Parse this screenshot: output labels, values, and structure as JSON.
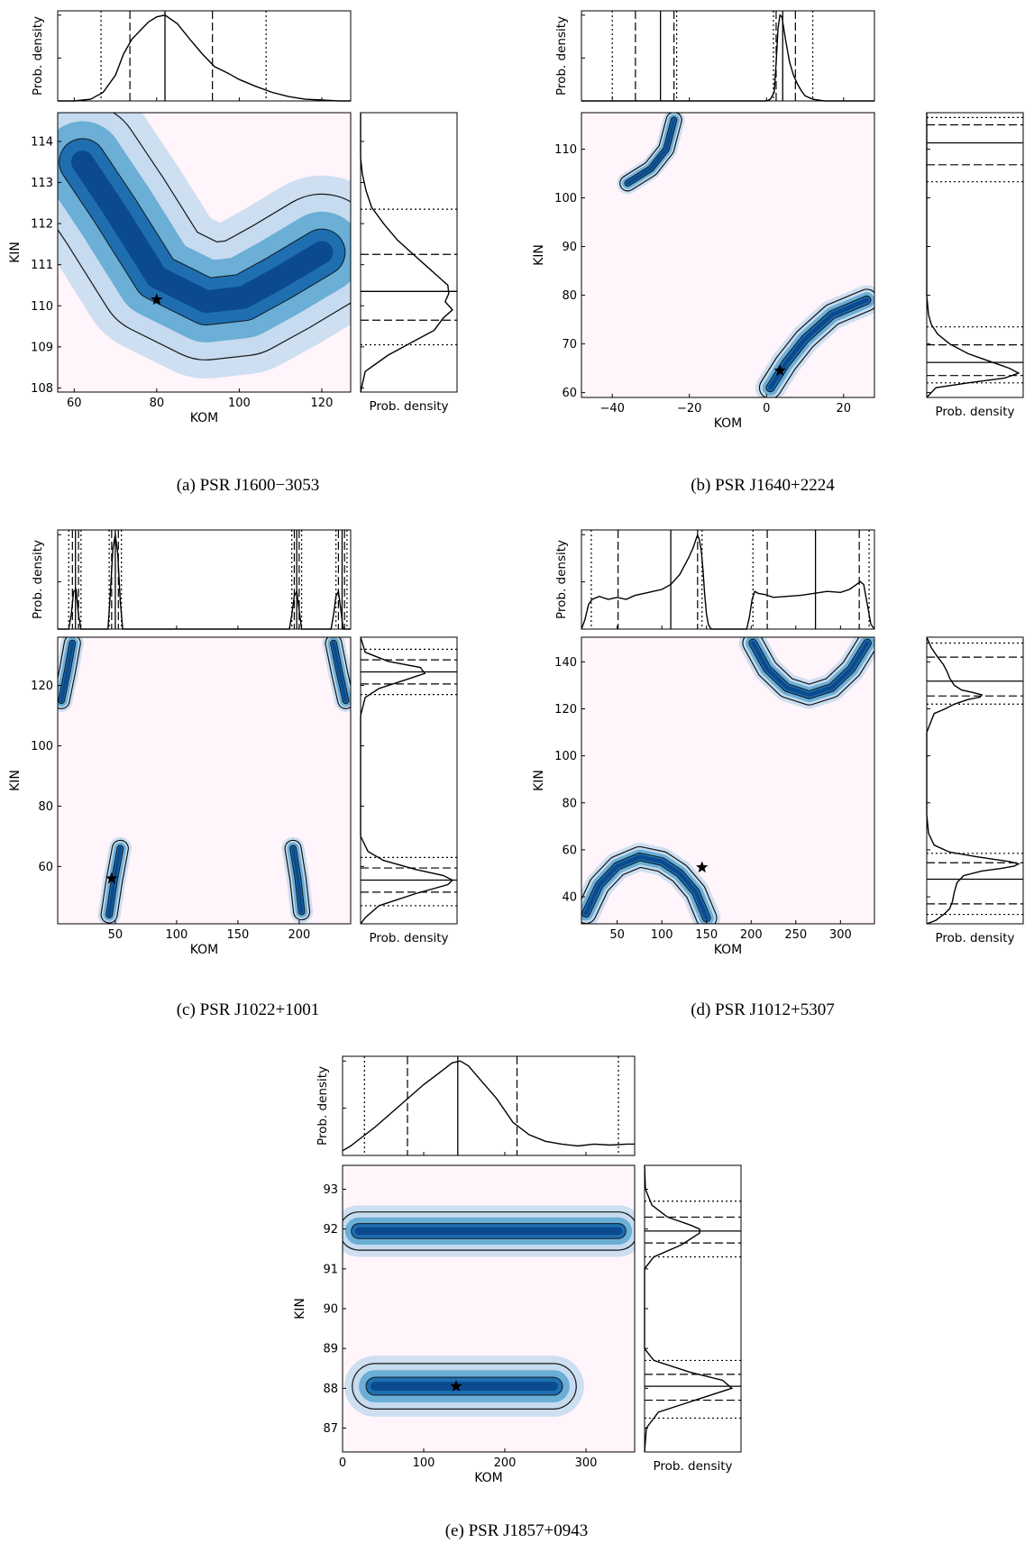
{
  "figure": {
    "captions": [
      "(a) PSR J1600−3053",
      "(b) PSR J1640+2224",
      "(c) PSR J1022+1001",
      "(d) PSR J1012+5307",
      "(e) PSR J1857+0943"
    ]
  },
  "chart_data": [
    {
      "type": "heatmap",
      "caption": "(a) PSR J1600−3053",
      "xlabel": "KOM",
      "ylabel": "KIN",
      "marg_x_label": "Prob. density",
      "marg_y_label": "Prob. density",
      "xlim": [
        56,
        127
      ],
      "ylim": [
        107.9,
        114.7
      ],
      "xticks": [
        60,
        80,
        100,
        120
      ],
      "yticks": [
        108,
        109,
        110,
        111,
        112,
        113,
        114
      ],
      "star": [
        80,
        110.15
      ],
      "blobs": [
        {
          "points": [
            [
              62,
              113.5
            ],
            [
              70,
              112.3
            ],
            [
              80,
              110.7
            ],
            [
              92,
              110.1
            ],
            [
              101,
              110.2
            ],
            [
              110,
              110.7
            ],
            [
              120,
              111.3
            ]
          ],
          "width": 1.1
        }
      ],
      "top_marginal": {
        "x": [
          56,
          60,
          64,
          67,
          70,
          72,
          74,
          76,
          78,
          80,
          82,
          85,
          88,
          91,
          94,
          97,
          100,
          104,
          108,
          112,
          116,
          120,
          124,
          127
        ],
        "y": [
          0,
          0,
          0.02,
          0.1,
          0.3,
          0.55,
          0.72,
          0.82,
          0.92,
          0.98,
          1,
          0.9,
          0.72,
          0.55,
          0.4,
          0.33,
          0.25,
          0.17,
          0.1,
          0.05,
          0.02,
          0.01,
          0,
          0
        ],
        "ymax": 1.05,
        "lines": {
          "solid": [
            82
          ],
          "dashed": [
            73.5,
            93.5
          ],
          "dotted": [
            66.5,
            106.5
          ]
        }
      },
      "right_marginal": {
        "y": [
          107.9,
          108.4,
          108.8,
          109.1,
          109.4,
          109.7,
          109.9,
          110.1,
          110.3,
          110.5,
          110.7,
          111,
          111.3,
          111.6,
          112,
          112.4,
          112.8,
          113.2,
          113.6,
          114.7
        ],
        "x": [
          0,
          0.05,
          0.3,
          0.55,
          0.8,
          0.9,
          1,
          0.92,
          0.96,
          0.95,
          0.85,
          0.7,
          0.55,
          0.4,
          0.25,
          0.12,
          0.06,
          0.02,
          0,
          0
        ],
        "xmax": 1.05,
        "lines": {
          "solid": [
            110.35
          ],
          "dashed": [
            109.65,
            111.25
          ],
          "dotted": [
            109.05,
            112.35
          ]
        }
      }
    },
    {
      "type": "heatmap",
      "caption": "(b) PSR J1640+2224",
      "xlabel": "KOM",
      "ylabel": "KIN",
      "marg_x_label": "Prob. density",
      "marg_y_label": "Prob. density",
      "xlim": [
        -48,
        28
      ],
      "ylim": [
        59,
        117.5
      ],
      "xticks": [
        -40,
        -20,
        0,
        20
      ],
      "yticks": [
        60,
        70,
        80,
        90,
        100,
        110
      ],
      "star": [
        3.5,
        64.5
      ],
      "blobs": [
        {
          "points": [
            [
              1,
              61
            ],
            [
              5,
              66
            ],
            [
              10,
              71
            ],
            [
              17,
              76
            ],
            [
              26,
              79
            ]
          ],
          "width": 1.8
        },
        {
          "points": [
            [
              -36,
              103
            ],
            [
              -30,
              106
            ],
            [
              -26,
              110
            ],
            [
              -24,
              116
            ]
          ],
          "width": 1.3
        }
      ],
      "top_marginal": {
        "x": [
          -48,
          -10,
          0,
          1,
          2,
          2.5,
          3,
          3.5,
          4,
          5,
          6,
          7,
          8,
          9,
          10,
          12,
          15,
          28
        ],
        "y": [
          0,
          0,
          0,
          0.02,
          0.1,
          0.45,
          0.85,
          1,
          0.98,
          0.7,
          0.45,
          0.3,
          0.2,
          0.12,
          0.06,
          0.02,
          0,
          0
        ],
        "ymax": 1.05,
        "lines": {
          "solid": [
            -27.5,
            4.2
          ],
          "dashed": [
            -34,
            -24,
            2.5,
            7.5
          ],
          "dotted": [
            -40,
            -23.3,
            1.8,
            12
          ]
        }
      },
      "right_marginal": {
        "y": [
          59,
          61,
          62,
          63,
          64,
          65,
          66,
          67,
          68,
          70,
          72,
          74,
          76,
          80,
          117.5
        ],
        "x": [
          0,
          0.1,
          0.45,
          0.85,
          1,
          0.9,
          0.75,
          0.6,
          0.45,
          0.25,
          0.12,
          0.05,
          0.02,
          0,
          0
        ],
        "xmax": 1.05,
        "lines": {
          "solid": [
            66.2,
            111.3
          ],
          "dashed": [
            63.5,
            69.8,
            106.8,
            115
          ],
          "dotted": [
            62,
            73.5,
            103.3,
            116.5
          ]
        }
      }
    },
    {
      "type": "heatmap",
      "caption": "(c) PSR J1022+1001",
      "xlabel": "KOM",
      "ylabel": "KIN",
      "marg_x_label": "Prob. density",
      "marg_y_label": "Prob. density",
      "xlim": [
        3,
        242
      ],
      "ylim": [
        41,
        136
      ],
      "xticks": [
        50,
        100,
        150,
        200
      ],
      "yticks": [
        60,
        80,
        100,
        120
      ],
      "star": [
        47,
        56
      ],
      "blobs": [
        {
          "points": [
            [
              45,
              44
            ],
            [
              49,
              55
            ],
            [
              54,
              66
            ]
          ],
          "width": 2.2
        },
        {
          "points": [
            [
              195,
              66
            ],
            [
              199,
              56
            ],
            [
              202,
              45
            ]
          ],
          "width": 2.2
        },
        {
          "points": [
            [
              6,
              115
            ],
            [
              11,
              125
            ],
            [
              15,
              134
            ]
          ],
          "width": 2.2
        },
        {
          "points": [
            [
              228,
              134
            ],
            [
              233,
              124
            ],
            [
              238,
              115
            ]
          ],
          "width": 2.2
        }
      ],
      "top_marginal": {
        "x": [
          3,
          12,
          14,
          16,
          18,
          20,
          22,
          44,
          46,
          48,
          50,
          52,
          54,
          56,
          192,
          194,
          196,
          198,
          200,
          202,
          226,
          228,
          230,
          232,
          234,
          236,
          242
        ],
        "y": [
          0,
          0,
          0.15,
          0.4,
          0.42,
          0.15,
          0,
          0,
          0.4,
          0.85,
          1,
          0.8,
          0.3,
          0,
          0,
          0.15,
          0.35,
          0.4,
          0.2,
          0,
          0,
          0.15,
          0.35,
          0.4,
          0.2,
          0,
          0
        ],
        "ymax": 1.05,
        "lines": {
          "solid": [
            17.5,
            50,
            198,
            235
          ],
          "dashed": [
            15,
            20,
            47,
            52.5,
            196,
            200,
            232,
            237
          ],
          "dotted": [
            12,
            22,
            45,
            55,
            194,
            202,
            230,
            239
          ]
        }
      },
      "right_marginal": {
        "y": [
          41,
          43,
          47,
          51,
          54,
          55.5,
          57,
          59,
          62,
          65,
          70,
          110,
          116,
          119,
          122,
          124,
          126,
          128,
          131,
          136
        ],
        "x": [
          0,
          0.05,
          0.2,
          0.6,
          0.95,
          1,
          0.9,
          0.6,
          0.25,
          0.08,
          0,
          0,
          0.05,
          0.2,
          0.5,
          0.7,
          0.65,
          0.3,
          0.05,
          0
        ],
        "xmax": 1.05,
        "lines": {
          "solid": [
            55.5,
            124.5
          ],
          "dashed": [
            51.5,
            59.5,
            120.5,
            128.5
          ],
          "dotted": [
            47,
            63,
            117,
            132
          ]
        }
      }
    },
    {
      "type": "heatmap",
      "caption": "(d) PSR J1012+5307",
      "xlabel": "KOM",
      "ylabel": "KIN",
      "marg_x_label": "Prob. density",
      "marg_y_label": "Prob. density",
      "xlim": [
        10,
        338
      ],
      "ylim": [
        28.5,
        150.5
      ],
      "xticks": [
        50,
        100,
        150,
        200,
        250,
        300
      ],
      "yticks": [
        40,
        60,
        80,
        100,
        120,
        140
      ],
      "star": [
        145,
        52.5
      ],
      "blobs": [
        {
          "points": [
            [
              15,
              33
            ],
            [
              30,
              45
            ],
            [
              50,
              53
            ],
            [
              75,
              57
            ],
            [
              100,
              55
            ],
            [
              120,
              50
            ],
            [
              138,
              42
            ],
            [
              150,
              31
            ]
          ],
          "width": 3.5
        },
        {
          "points": [
            [
              202,
              148
            ],
            [
              218,
              137
            ],
            [
              240,
              129
            ],
            [
              265,
              126
            ],
            [
              290,
              129
            ],
            [
              312,
              137
            ],
            [
              330,
              148
            ]
          ],
          "width": 3.5
        }
      ],
      "top_marginal": {
        "x": [
          10,
          14,
          18,
          22,
          30,
          40,
          50,
          60,
          70,
          80,
          90,
          100,
          110,
          120,
          130,
          135,
          138,
          140,
          142,
          144,
          146,
          148,
          150,
          152,
          155,
          195,
          198,
          201,
          204,
          208,
          215,
          225,
          240,
          255,
          270,
          285,
          300,
          310,
          318,
          322,
          326,
          330,
          334,
          338
        ],
        "y": [
          0,
          0.1,
          0.25,
          0.3,
          0.33,
          0.3,
          0.32,
          0.3,
          0.34,
          0.36,
          0.38,
          0.4,
          0.45,
          0.55,
          0.72,
          0.82,
          0.9,
          0.95,
          0.9,
          0.8,
          0.6,
          0.35,
          0.15,
          0.05,
          0,
          0,
          0.12,
          0.3,
          0.38,
          0.36,
          0.35,
          0.32,
          0.33,
          0.34,
          0.36,
          0.38,
          0.37,
          0.4,
          0.45,
          0.48,
          0.45,
          0.25,
          0.05,
          0
        ],
        "ymax": 1.0,
        "lines": {
          "solid": [
            110,
            272
          ],
          "dashed": [
            51,
            140,
            218,
            321
          ],
          "dotted": [
            21,
            145,
            202,
            332
          ]
        }
      },
      "right_marginal": {
        "y": [
          28.5,
          30,
          33,
          35,
          38,
          42,
          46,
          49,
          51,
          52,
          53,
          54,
          55,
          57,
          59,
          62,
          67,
          75,
          110,
          118,
          120,
          122,
          124,
          125,
          126,
          127,
          128,
          130,
          133,
          136,
          139,
          142,
          146,
          150.5
        ],
        "x": [
          0,
          0.1,
          0.2,
          0.25,
          0.28,
          0.3,
          0.33,
          0.4,
          0.6,
          0.8,
          0.95,
          1,
          0.9,
          0.55,
          0.25,
          0.08,
          0.02,
          0,
          0,
          0.08,
          0.2,
          0.3,
          0.45,
          0.58,
          0.6,
          0.5,
          0.38,
          0.3,
          0.25,
          0.22,
          0.18,
          0.12,
          0.05,
          0
        ],
        "xmax": 1.05,
        "lines": {
          "solid": [
            47.5,
            131.8
          ],
          "dashed": [
            37,
            54.5,
            125.5,
            142
          ],
          "dotted": [
            32.5,
            58.5,
            122,
            148
          ]
        }
      }
    },
    {
      "type": "heatmap",
      "caption": "(e) PSR J1857+0943",
      "xlabel": "KOM",
      "ylabel": "KIN",
      "marg_x_label": "Prob. density",
      "marg_y_label": "Prob. density",
      "xlim": [
        0,
        360
      ],
      "ylim": [
        86.4,
        93.6
      ],
      "xticks": [
        0,
        100,
        200,
        300
      ],
      "yticks": [
        87,
        88,
        89,
        90,
        91,
        92,
        93
      ],
      "star": [
        140,
        88.05
      ],
      "blobs": [
        {
          "points": [
            [
              40,
              88.05
            ],
            [
              100,
              88.05
            ],
            [
              140,
              88.05
            ],
            [
              200,
              88.05
            ],
            [
              260,
              88.05
            ]
          ],
          "width": 0.45
        },
        {
          "points": [
            [
              20,
              91.95
            ],
            [
              100,
              91.95
            ],
            [
              180,
              91.95
            ],
            [
              260,
              91.95
            ],
            [
              340,
              91.95
            ]
          ],
          "width": 0.38
        }
      ],
      "top_marginal": {
        "x": [
          0,
          10,
          25,
          40,
          60,
          80,
          100,
          120,
          135,
          145,
          155,
          170,
          190,
          210,
          230,
          250,
          270,
          290,
          310,
          330,
          350,
          360
        ],
        "y": [
          0.05,
          0.1,
          0.2,
          0.3,
          0.45,
          0.6,
          0.75,
          0.88,
          0.98,
          1,
          0.95,
          0.8,
          0.6,
          0.35,
          0.22,
          0.15,
          0.12,
          0.1,
          0.12,
          0.11,
          0.12,
          0.12
        ],
        "ymax": 1.05,
        "lines": {
          "solid": [
            142
          ],
          "dashed": [
            80,
            215
          ],
          "dotted": [
            27,
            340
          ]
        }
      },
      "right_marginal": {
        "y": [
          86.4,
          87.0,
          87.4,
          87.7,
          88.0,
          88.2,
          88.4,
          88.7,
          89.0,
          91.0,
          91.3,
          91.6,
          91.9,
          92.0,
          92.1,
          92.3,
          92.6,
          93.0,
          93.6
        ],
        "x": [
          0,
          0.02,
          0.15,
          0.55,
          0.95,
          0.85,
          0.5,
          0.1,
          0,
          0,
          0.1,
          0.4,
          0.6,
          0.6,
          0.5,
          0.25,
          0.08,
          0.01,
          0
        ],
        "xmax": 1.05,
        "lines": {
          "solid": [
            88.05,
            91.95
          ],
          "dashed": [
            87.7,
            88.35,
            91.65,
            92.3
          ],
          "dotted": [
            87.25,
            88.7,
            91.3,
            92.7
          ]
        }
      }
    }
  ]
}
